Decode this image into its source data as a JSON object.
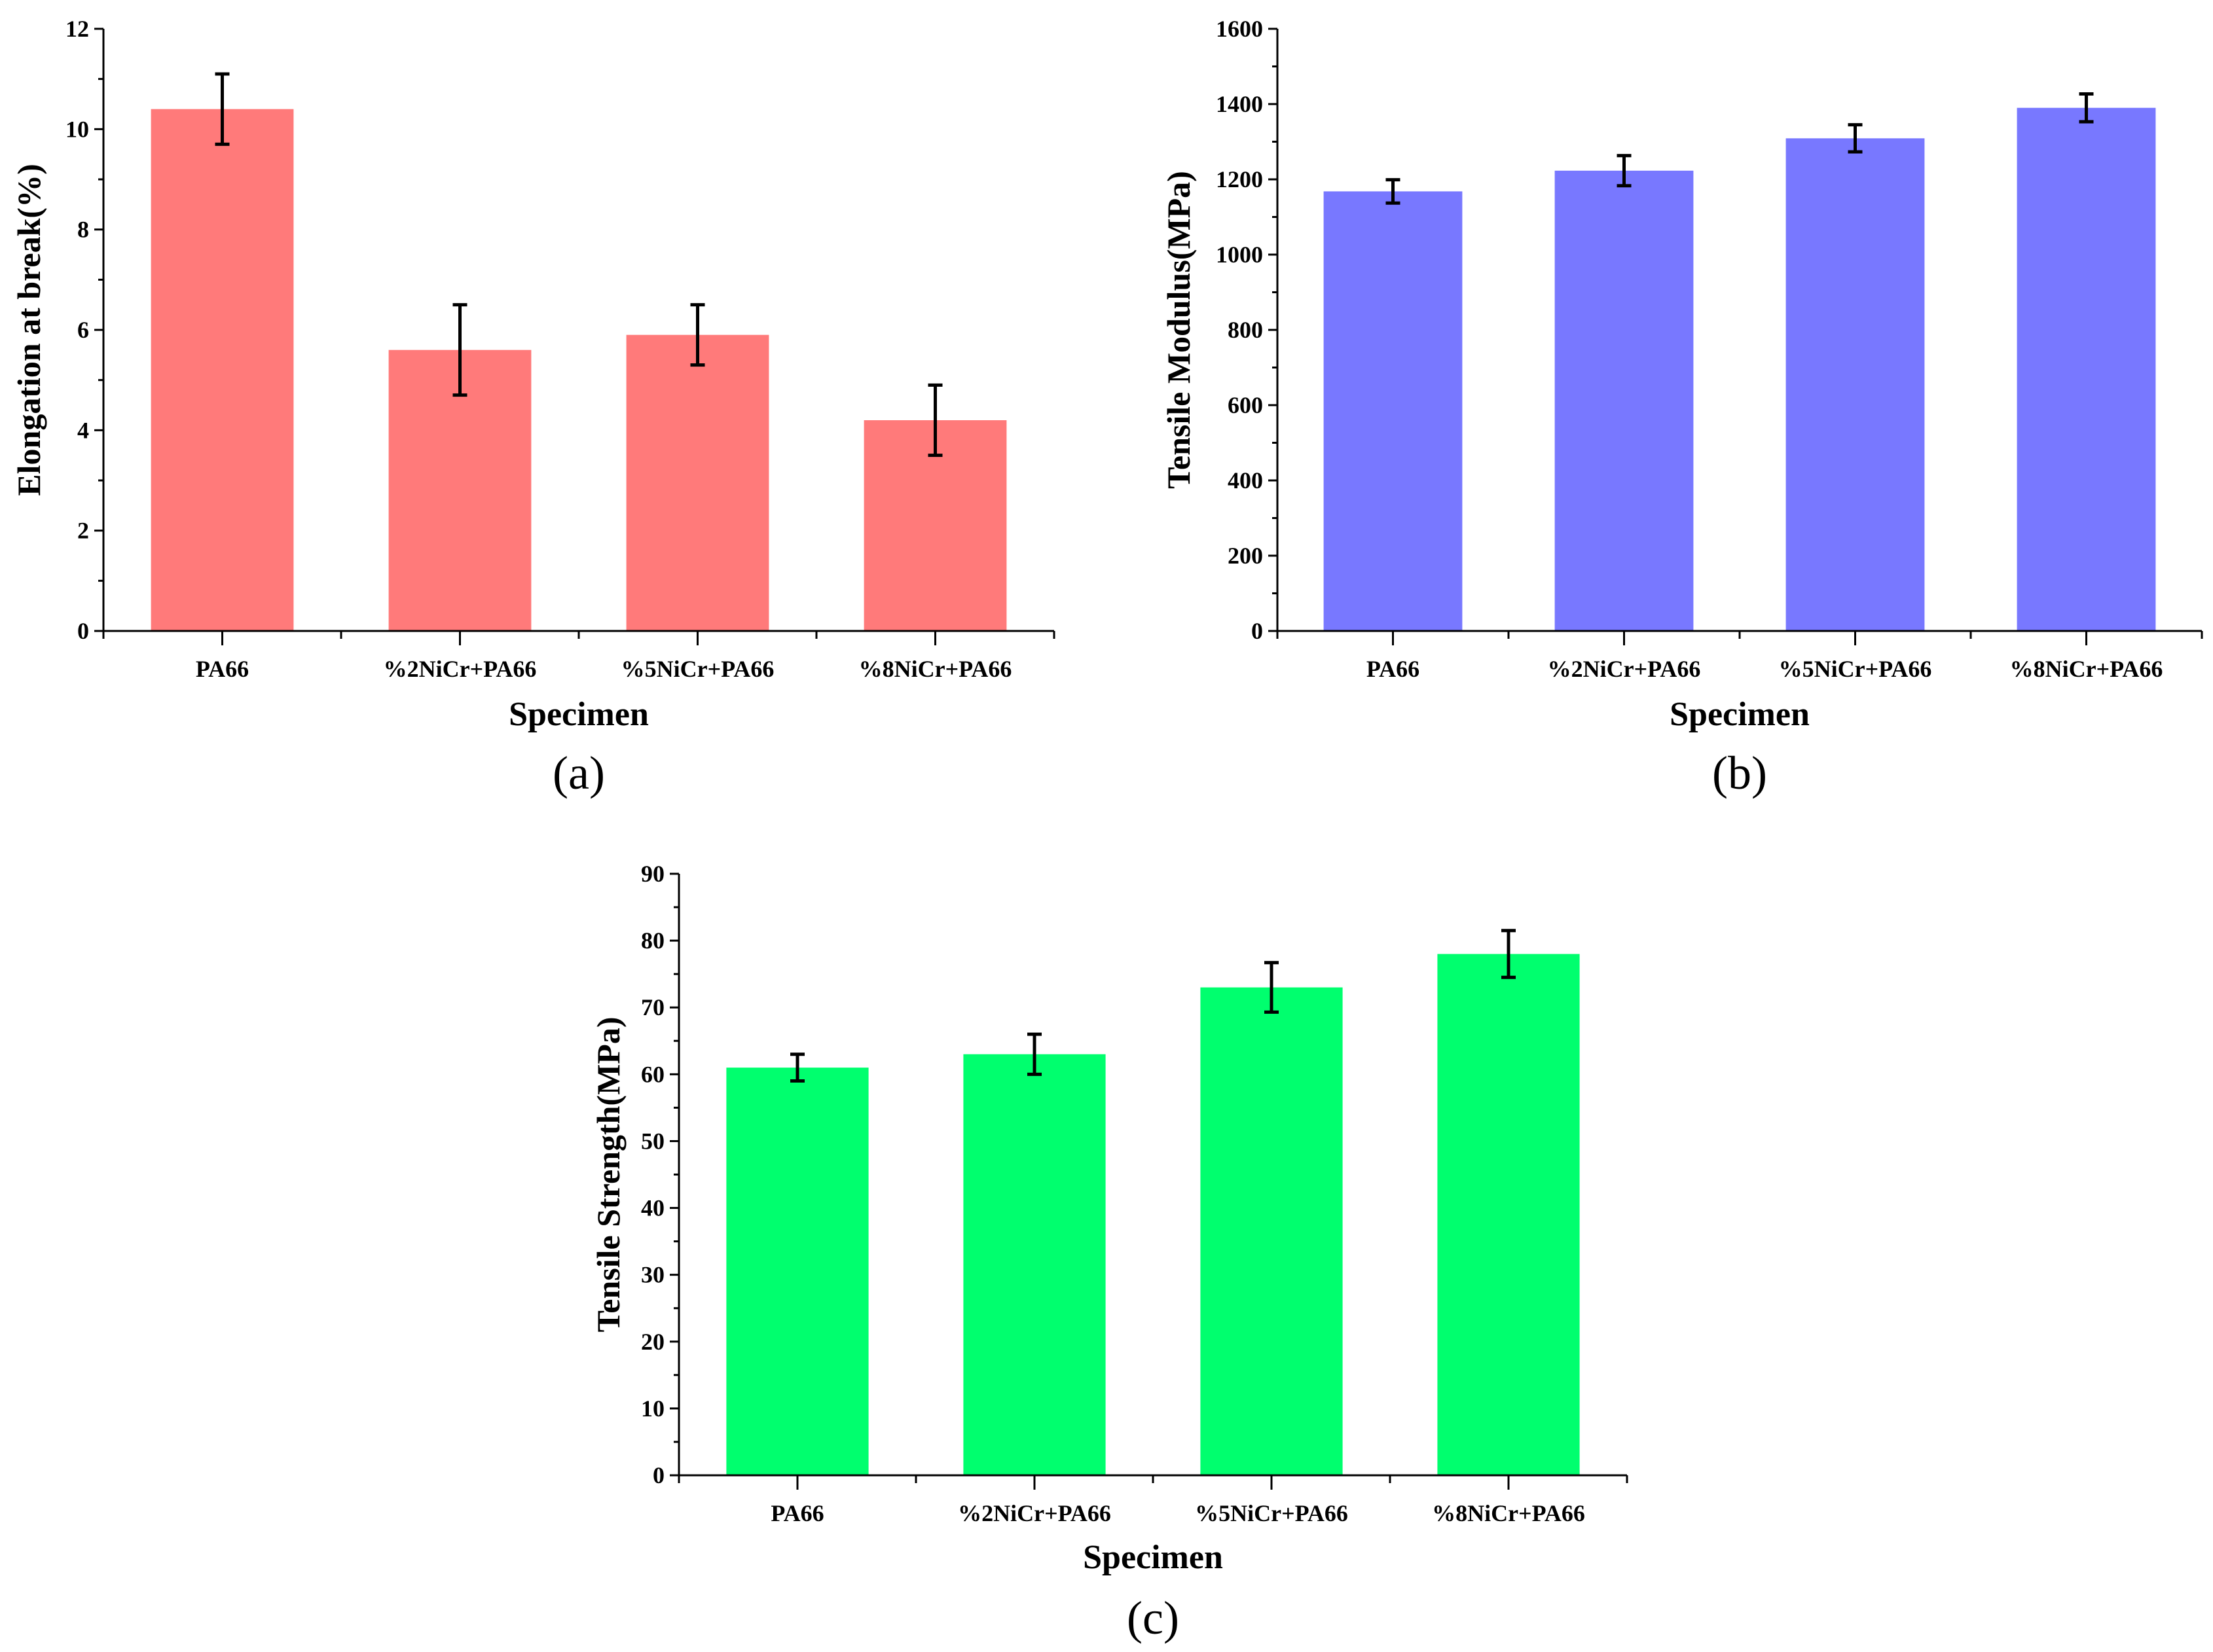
{
  "chart_data": [
    {
      "type": "bar",
      "panel_label": "(a)",
      "title": "",
      "xlabel": "Specimen",
      "ylabel": "Elongation at break(%)",
      "categories": [
        "PA66",
        "%2NiCr+PA66",
        "%5NiCr+PA66",
        "%8NiCr+PA66"
      ],
      "values": [
        10.4,
        5.6,
        5.9,
        4.2
      ],
      "errors": [
        0.7,
        0.9,
        0.6,
        0.7
      ],
      "ylim": [
        0,
        12
      ],
      "yticks": [
        "0",
        "2",
        "4",
        "6",
        "8",
        "10",
        "12"
      ],
      "ytick_step": 2,
      "color": "#ff7a7a",
      "grid": false
    },
    {
      "type": "bar",
      "panel_label": "(b)",
      "title": "",
      "xlabel": "Specimen",
      "ylabel": "Tensile Modulus(MPa)",
      "categories": [
        "PA66",
        "%2NiCr+PA66",
        "%5NiCr+PA66",
        "%8NiCr+PA66"
      ],
      "values": [
        1168,
        1223,
        1309,
        1390
      ],
      "errors": [
        31,
        40,
        36,
        37
      ],
      "ylim": [
        0,
        1600
      ],
      "yticks": [
        "0",
        "200",
        "400",
        "600",
        "800",
        "1000",
        "1200",
        "1400",
        "1600"
      ],
      "ytick_step": 200,
      "color": "#7878ff",
      "grid": false
    },
    {
      "type": "bar",
      "panel_label": "(c)",
      "title": "",
      "xlabel": "Specimen",
      "ylabel": "Tensile Strength(MPa)",
      "categories": [
        "PA66",
        "%2NiCr+PA66",
        "%5NiCr+PA66",
        "%8NiCr+PA66"
      ],
      "values": [
        61,
        63,
        73,
        78
      ],
      "errors": [
        2,
        3,
        3.7,
        3.5
      ],
      "ylim": [
        0,
        90
      ],
      "yticks": [
        "0",
        "10",
        "20",
        "30",
        "40",
        "50",
        "60",
        "70",
        "80",
        "90"
      ],
      "ytick_step": 10,
      "color": "#00ff6e",
      "grid": false
    }
  ]
}
